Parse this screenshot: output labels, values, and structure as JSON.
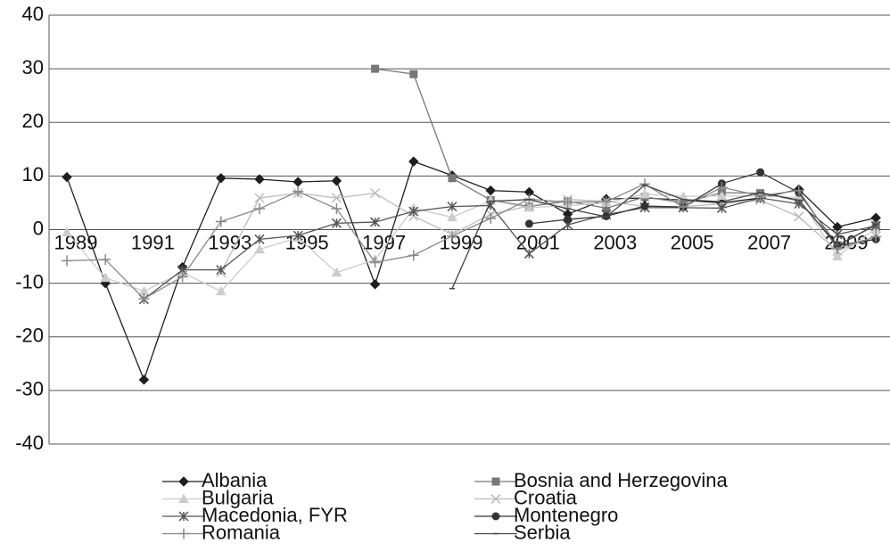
{
  "chart_data": {
    "type": "line",
    "categories": [
      "1989",
      null,
      "1991",
      null,
      "1993",
      null,
      "1995",
      null,
      "1997",
      null,
      "1999",
      null,
      "2001",
      null,
      "2003",
      null,
      "2005",
      null,
      "2007",
      null,
      "2009",
      null
    ],
    "ylim": [
      -40,
      40
    ],
    "yticks": [
      -40,
      -30,
      -20,
      -10,
      0,
      10,
      20,
      30,
      40
    ],
    "grid": true,
    "series": [
      {
        "name": "Albania",
        "color": "#1e1e1e",
        "marker": "diamond",
        "values": [
          9.8,
          -10,
          -28,
          -7,
          9.6,
          9.4,
          8.9,
          9.1,
          -10.2,
          12.7,
          10.1,
          7.3,
          7.0,
          2.9,
          5.7,
          5.9,
          5.5,
          5.0,
          5.9,
          7.5,
          0.5,
          2.2
        ]
      },
      {
        "name": "Bosnia and Herzegovina",
        "color": "#777777",
        "marker": "square",
        "values": [
          null,
          null,
          null,
          null,
          null,
          null,
          null,
          null,
          30,
          29,
          9.6,
          5.5,
          4.3,
          5.3,
          4.0,
          6.1,
          5.0,
          6.9,
          6.8,
          5.4,
          -2.9,
          0.8
        ]
      },
      {
        "name": "Bulgaria",
        "color": "#cccccc",
        "marker": "triangle",
        "values": [
          -0.5,
          -9,
          -11.5,
          -8,
          -11.5,
          -3.7,
          -1.5,
          -8,
          -5.6,
          4.0,
          2.3,
          5.4,
          4.1,
          4.5,
          5.0,
          6.6,
          6.2,
          6.3,
          6.2,
          6.0,
          -5.0,
          0.2
        ]
      },
      {
        "name": "Croatia",
        "color": "#bbbbbb",
        "marker": "x",
        "values": [
          null,
          null,
          null,
          null,
          -8,
          5.9,
          6.8,
          5.9,
          6.8,
          2.5,
          -0.9,
          2.9,
          4.4,
          5.6,
          5.3,
          4.3,
          4.3,
          4.8,
          5.5,
          2.4,
          -4,
          -1.2
        ]
      },
      {
        "name": "Macedonia, FYR",
        "color": "#555555",
        "marker": "star",
        "values": [
          null,
          null,
          -13,
          -7.5,
          -7.5,
          -1.8,
          -1.1,
          1.2,
          1.4,
          3.4,
          4.3,
          4.5,
          -4.5,
          0.9,
          2.8,
          4.1,
          4.1,
          4.0,
          5.9,
          4.8,
          -0.9,
          0.7
        ]
      },
      {
        "name": "Montenegro",
        "color": "#333333",
        "marker": "circle",
        "values": [
          null,
          null,
          null,
          null,
          null,
          null,
          null,
          null,
          null,
          null,
          null,
          null,
          1.1,
          1.9,
          2.5,
          4.4,
          4.2,
          8.6,
          10.7,
          6.9,
          -3,
          -1.8
        ]
      },
      {
        "name": "Romania",
        "color": "#888888",
        "marker": "plus",
        "values": [
          -5.8,
          -5.6,
          -12.9,
          -8.8,
          1.5,
          3.9,
          7.1,
          3.9,
          -6.1,
          -4.8,
          -1.2,
          2.1,
          5.7,
          5.1,
          5.2,
          8.5,
          4.2,
          7.9,
          6.3,
          7.3,
          -3.5,
          -1.3
        ]
      },
      {
        "name": "Serbia",
        "color": "#444444",
        "marker": "dash",
        "values": [
          null,
          null,
          null,
          null,
          null,
          null,
          null,
          null,
          null,
          null,
          -11,
          5.3,
          5.6,
          3.9,
          2.4,
          8.3,
          5.6,
          5.2,
          6.9,
          5.5,
          -3.1,
          1.0
        ]
      }
    ]
  }
}
